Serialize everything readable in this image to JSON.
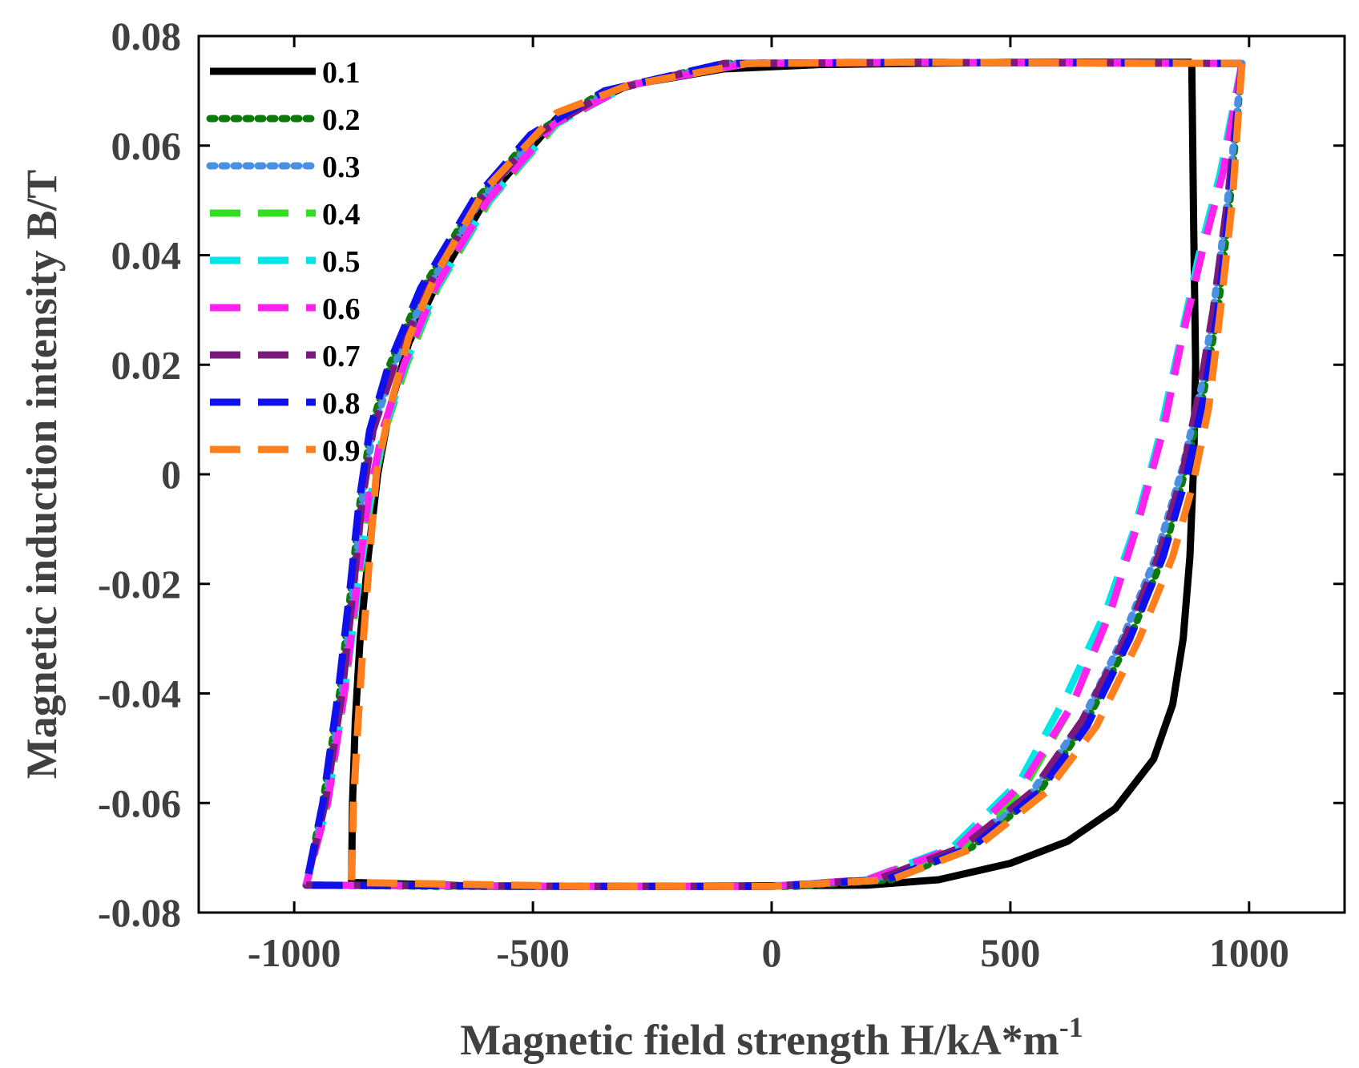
{
  "chart_data": {
    "type": "line",
    "title": "",
    "xlabel": "Magnetic field strength H/kA*m",
    "xlabel_superscript": "-1",
    "ylabel": "Magnetic induction intensity B/T",
    "xlim": [
      -1200,
      1200
    ],
    "ylim": [
      -0.08,
      0.08
    ],
    "x_ticks": [
      -1000,
      -500,
      0,
      500,
      1000
    ],
    "x_tick_labels": [
      "-1000",
      "-500",
      "0",
      "500",
      "1000"
    ],
    "y_ticks": [
      -0.08,
      -0.06,
      -0.04,
      -0.02,
      0,
      0.02,
      0.04,
      0.06,
      0.08
    ],
    "y_tick_labels": [
      "-0.08",
      "-0.06",
      "-0.04",
      "-0.02",
      "0",
      "0.02",
      "0.04",
      "0.06",
      "0.08"
    ],
    "grid": false,
    "legend_position": "top-left",
    "series": [
      {
        "name": "0.1",
        "color": "#000000",
        "dash": "solid",
        "points": [
          [
            880,
            0.075
          ],
          [
            884,
            0.045
          ],
          [
            888,
            0.02
          ],
          [
            884,
            0.002
          ],
          [
            876,
            -0.015
          ],
          [
            862,
            -0.03
          ],
          [
            840,
            -0.042
          ],
          [
            800,
            -0.052
          ],
          [
            720,
            -0.061
          ],
          [
            620,
            -0.067
          ],
          [
            500,
            -0.071
          ],
          [
            350,
            -0.074
          ],
          [
            200,
            -0.075
          ],
          [
            -200,
            -0.0752
          ],
          [
            -600,
            -0.0752
          ],
          [
            -880,
            -0.0745
          ],
          [
            -878,
            -0.06
          ],
          [
            -872,
            -0.045
          ],
          [
            -862,
            -0.03
          ],
          [
            -845,
            -0.015
          ],
          [
            -825,
            0.0
          ],
          [
            -800,
            0.012
          ],
          [
            -760,
            0.024
          ],
          [
            -700,
            0.035
          ],
          [
            -600,
            0.05
          ],
          [
            -450,
            0.065
          ],
          [
            -300,
            0.071
          ],
          [
            -100,
            0.074
          ],
          [
            100,
            0.0748
          ],
          [
            500,
            0.0752
          ],
          [
            880,
            0.0752
          ]
        ]
      },
      {
        "name": "0.2",
        "color": "#0b7a0b",
        "dash": "dot",
        "points": [
          [
            985,
            0.075
          ],
          [
            960,
            0.05
          ],
          [
            935,
            0.03
          ],
          [
            905,
            0.015
          ],
          [
            870,
            0.002
          ],
          [
            820,
            -0.015
          ],
          [
            750,
            -0.03
          ],
          [
            660,
            -0.045
          ],
          [
            560,
            -0.058
          ],
          [
            420,
            -0.068
          ],
          [
            250,
            -0.074
          ],
          [
            50,
            -0.0752
          ],
          [
            -300,
            -0.0752
          ],
          [
            -700,
            -0.0752
          ],
          [
            -975,
            -0.075
          ],
          [
            -940,
            -0.06
          ],
          [
            -905,
            -0.04
          ],
          [
            -880,
            -0.02
          ],
          [
            -862,
            -0.005
          ],
          [
            -840,
            0.008
          ],
          [
            -800,
            0.02
          ],
          [
            -730,
            0.034
          ],
          [
            -620,
            0.05
          ],
          [
            -500,
            0.062
          ],
          [
            -350,
            0.07
          ],
          [
            -100,
            0.075
          ],
          [
            300,
            0.0752
          ],
          [
            985,
            0.075
          ]
        ]
      },
      {
        "name": "0.3",
        "color": "#4a90e2",
        "dash": "dot",
        "points": [
          [
            985,
            0.075
          ],
          [
            955,
            0.05
          ],
          [
            925,
            0.03
          ],
          [
            900,
            0.016
          ],
          [
            860,
            0.001
          ],
          [
            805,
            -0.015
          ],
          [
            735,
            -0.03
          ],
          [
            650,
            -0.045
          ],
          [
            545,
            -0.058
          ],
          [
            400,
            -0.068
          ],
          [
            220,
            -0.074
          ],
          [
            0,
            -0.0752
          ],
          [
            -400,
            -0.0752
          ],
          [
            -975,
            -0.075
          ],
          [
            -935,
            -0.06
          ],
          [
            -900,
            -0.04
          ],
          [
            -875,
            -0.02
          ],
          [
            -858,
            -0.005
          ],
          [
            -835,
            0.008
          ],
          [
            -790,
            0.02
          ],
          [
            -720,
            0.034
          ],
          [
            -610,
            0.05
          ],
          [
            -490,
            0.062
          ],
          [
            -340,
            0.07
          ],
          [
            -100,
            0.075
          ],
          [
            300,
            0.0752
          ],
          [
            985,
            0.075
          ]
        ]
      },
      {
        "name": "0.4",
        "color": "#33dd22",
        "dash": "dash",
        "points": [
          [
            985,
            0.075
          ],
          [
            940,
            0.055
          ],
          [
            900,
            0.04
          ],
          [
            860,
            0.025
          ],
          [
            815,
            0.008
          ],
          [
            770,
            -0.008
          ],
          [
            710,
            -0.025
          ],
          [
            630,
            -0.042
          ],
          [
            530,
            -0.057
          ],
          [
            400,
            -0.068
          ],
          [
            200,
            -0.074
          ],
          [
            0,
            -0.0752
          ],
          [
            -400,
            -0.0752
          ],
          [
            -975,
            -0.075
          ],
          [
            -930,
            -0.06
          ],
          [
            -895,
            -0.04
          ],
          [
            -865,
            -0.02
          ],
          [
            -840,
            -0.005
          ],
          [
            -810,
            0.008
          ],
          [
            -765,
            0.02
          ],
          [
            -700,
            0.034
          ],
          [
            -590,
            0.05
          ],
          [
            -450,
            0.064
          ],
          [
            -300,
            0.071
          ],
          [
            -50,
            0.075
          ],
          [
            300,
            0.0752
          ],
          [
            985,
            0.075
          ]
        ]
      },
      {
        "name": "0.5",
        "color": "#00e5e5",
        "dash": "dash",
        "points": [
          [
            985,
            0.075
          ],
          [
            940,
            0.055
          ],
          [
            895,
            0.04
          ],
          [
            855,
            0.024
          ],
          [
            810,
            0.006
          ],
          [
            760,
            -0.01
          ],
          [
            700,
            -0.025
          ],
          [
            620,
            -0.04
          ],
          [
            520,
            -0.056
          ],
          [
            380,
            -0.068
          ],
          [
            200,
            -0.074
          ],
          [
            0,
            -0.0752
          ],
          [
            -400,
            -0.0752
          ],
          [
            -975,
            -0.075
          ],
          [
            -930,
            -0.06
          ],
          [
            -895,
            -0.04
          ],
          [
            -865,
            -0.02
          ],
          [
            -842,
            -0.005
          ],
          [
            -812,
            0.008
          ],
          [
            -768,
            0.02
          ],
          [
            -702,
            0.034
          ],
          [
            -592,
            0.05
          ],
          [
            -452,
            0.064
          ],
          [
            -300,
            0.071
          ],
          [
            -50,
            0.075
          ],
          [
            300,
            0.0752
          ],
          [
            985,
            0.075
          ]
        ]
      },
      {
        "name": "0.6",
        "color": "#ff22ee",
        "dash": "dash",
        "points": [
          [
            985,
            0.075
          ],
          [
            945,
            0.055
          ],
          [
            900,
            0.04
          ],
          [
            860,
            0.025
          ],
          [
            820,
            0.008
          ],
          [
            770,
            -0.008
          ],
          [
            710,
            -0.025
          ],
          [
            630,
            -0.042
          ],
          [
            530,
            -0.056
          ],
          [
            390,
            -0.068
          ],
          [
            200,
            -0.074
          ],
          [
            0,
            -0.0752
          ],
          [
            -400,
            -0.0752
          ],
          [
            -975,
            -0.075
          ],
          [
            -930,
            -0.06
          ],
          [
            -895,
            -0.04
          ],
          [
            -868,
            -0.02
          ],
          [
            -845,
            -0.005
          ],
          [
            -815,
            0.008
          ],
          [
            -770,
            0.02
          ],
          [
            -705,
            0.034
          ],
          [
            -595,
            0.05
          ],
          [
            -455,
            0.064
          ],
          [
            -300,
            0.071
          ],
          [
            -50,
            0.075
          ],
          [
            300,
            0.0752
          ],
          [
            985,
            0.075
          ]
        ]
      },
      {
        "name": "0.7",
        "color": "#7a1a7a",
        "dash": "dash",
        "points": [
          [
            985,
            0.075
          ],
          [
            955,
            0.05
          ],
          [
            925,
            0.03
          ],
          [
            898,
            0.016
          ],
          [
            860,
            0.0
          ],
          [
            810,
            -0.015
          ],
          [
            740,
            -0.03
          ],
          [
            650,
            -0.045
          ],
          [
            545,
            -0.058
          ],
          [
            400,
            -0.068
          ],
          [
            220,
            -0.074
          ],
          [
            0,
            -0.0752
          ],
          [
            -400,
            -0.0752
          ],
          [
            -975,
            -0.075
          ],
          [
            -935,
            -0.06
          ],
          [
            -900,
            -0.04
          ],
          [
            -875,
            -0.02
          ],
          [
            -858,
            -0.005
          ],
          [
            -835,
            0.008
          ],
          [
            -790,
            0.02
          ],
          [
            -722,
            0.034
          ],
          [
            -612,
            0.05
          ],
          [
            -492,
            0.062
          ],
          [
            -340,
            0.07
          ],
          [
            -100,
            0.075
          ],
          [
            300,
            0.0752
          ],
          [
            985,
            0.075
          ]
        ]
      },
      {
        "name": "0.8",
        "color": "#1010ee",
        "dash": "dash",
        "points": [
          [
            985,
            0.075
          ],
          [
            960,
            0.05
          ],
          [
            935,
            0.03
          ],
          [
            905,
            0.014
          ],
          [
            870,
            0.0
          ],
          [
            820,
            -0.015
          ],
          [
            750,
            -0.03
          ],
          [
            660,
            -0.046
          ],
          [
            560,
            -0.058
          ],
          [
            420,
            -0.068
          ],
          [
            240,
            -0.074
          ],
          [
            0,
            -0.0752
          ],
          [
            -400,
            -0.0752
          ],
          [
            -975,
            -0.075
          ],
          [
            -940,
            -0.06
          ],
          [
            -908,
            -0.04
          ],
          [
            -882,
            -0.02
          ],
          [
            -864,
            -0.005
          ],
          [
            -842,
            0.008
          ],
          [
            -802,
            0.02
          ],
          [
            -735,
            0.034
          ],
          [
            -625,
            0.05
          ],
          [
            -505,
            0.062
          ],
          [
            -350,
            0.07
          ],
          [
            -100,
            0.075
          ],
          [
            300,
            0.0752
          ],
          [
            985,
            0.075
          ]
        ]
      },
      {
        "name": "0.9",
        "color": "#ff7f1f",
        "dash": "dash",
        "points": [
          [
            985,
            0.075
          ],
          [
            965,
            0.05
          ],
          [
            940,
            0.03
          ],
          [
            915,
            0.012
          ],
          [
            882,
            -0.002
          ],
          [
            840,
            -0.015
          ],
          [
            770,
            -0.03
          ],
          [
            680,
            -0.046
          ],
          [
            575,
            -0.058
          ],
          [
            430,
            -0.068
          ],
          [
            250,
            -0.074
          ],
          [
            0,
            -0.0752
          ],
          [
            -400,
            -0.0752
          ],
          [
            -880,
            -0.0745
          ],
          [
            -876,
            -0.06
          ],
          [
            -866,
            -0.045
          ],
          [
            -855,
            -0.03
          ],
          [
            -842,
            -0.015
          ],
          [
            -828,
            0.0
          ],
          [
            -800,
            0.012
          ],
          [
            -760,
            0.025
          ],
          [
            -700,
            0.037
          ],
          [
            -600,
            0.052
          ],
          [
            -450,
            0.066
          ],
          [
            -300,
            0.071
          ],
          [
            -50,
            0.075
          ],
          [
            300,
            0.0752
          ],
          [
            985,
            0.075
          ]
        ]
      }
    ]
  }
}
